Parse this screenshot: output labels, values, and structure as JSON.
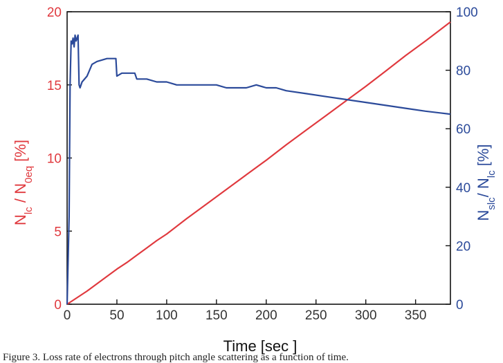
{
  "chart_data": {
    "type": "line",
    "title": "",
    "xlabel": "Time [sec ]",
    "xlim": [
      0,
      385
    ],
    "xticks": [
      0,
      50,
      100,
      150,
      200,
      250,
      300,
      350
    ],
    "y_left": {
      "label_main": "N",
      "label_sub1": "lc",
      "label_mid": " / N",
      "label_sub2": "0eq",
      "label_unit": "  [%]",
      "lim": [
        0,
        20
      ],
      "ticks": [
        0,
        5,
        10,
        15,
        20
      ],
      "color": "#e0393e"
    },
    "y_right": {
      "label_main": "N",
      "label_sub1": "slc",
      "label_mid": "/ N",
      "label_sub2": "lc",
      "label_unit": "  [%]",
      "lim": [
        0,
        100
      ],
      "ticks": [
        0,
        20,
        40,
        60,
        80,
        100
      ],
      "color": "#2b4a9a"
    },
    "grid": false,
    "legend": "none",
    "series": [
      {
        "axis": "left",
        "color": "#e0393e",
        "x": [
          0,
          10,
          20,
          30,
          40,
          50,
          60,
          70,
          80,
          90,
          100,
          120,
          140,
          160,
          180,
          200,
          220,
          240,
          260,
          280,
          300,
          320,
          340,
          360,
          385
        ],
        "y": [
          0,
          0.45,
          0.9,
          1.4,
          1.9,
          2.4,
          2.85,
          3.35,
          3.85,
          4.35,
          4.8,
          5.85,
          6.85,
          7.85,
          8.85,
          9.85,
          10.9,
          11.9,
          12.9,
          13.9,
          14.9,
          15.95,
          17.0,
          18.0,
          19.3
        ]
      },
      {
        "axis": "right",
        "color": "#2b4a9a",
        "x": [
          0,
          2,
          3,
          4,
          5,
          6,
          7,
          8,
          9,
          10,
          11,
          12,
          13,
          15,
          20,
          25,
          30,
          40,
          49,
          50,
          55,
          65,
          68,
          70,
          80,
          90,
          100,
          110,
          120,
          130,
          140,
          150,
          160,
          170,
          180,
          190,
          200,
          210,
          220,
          240,
          260,
          280,
          300,
          320,
          340,
          360,
          385
        ],
        "y": [
          0,
          30,
          75,
          90,
          89,
          91,
          88,
          92,
          90,
          91,
          92,
          75,
          74,
          76,
          78,
          82,
          83,
          84,
          84,
          78,
          79,
          79,
          79,
          77,
          77,
          76,
          76,
          75,
          75,
          75,
          75,
          75,
          74,
          74,
          74,
          75,
          74,
          74,
          73,
          72,
          71,
          70,
          69,
          68,
          67,
          66,
          65
        ]
      }
    ]
  },
  "caption": "Figure 3. Loss rate of electrons through pitch angle scattering as a function of time."
}
